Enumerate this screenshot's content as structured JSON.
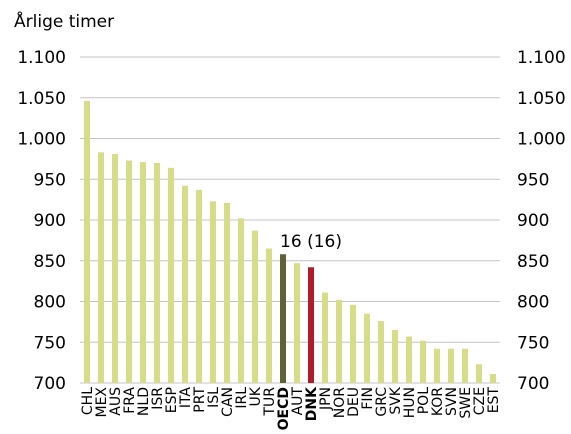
{
  "chart_data": {
    "type": "bar",
    "ylabel": "Årlige timer",
    "ylim": [
      700,
      1100
    ],
    "yticks": [
      700,
      750,
      800,
      850,
      900,
      950,
      1000,
      1050,
      1100
    ],
    "ytick_labels": [
      "700",
      "750",
      "800",
      "850",
      "900",
      "950",
      "1.000",
      "1.050",
      "1.100"
    ],
    "secondary_axis": "right",
    "grid": "horizontal",
    "categories": [
      "CHL",
      "MEX",
      "AUS",
      "FRA",
      "NLD",
      "ISR",
      "ESP",
      "ITA",
      "PRT",
      "ISL",
      "CAN",
      "IRL",
      "UK",
      "TUR",
      "OECD",
      "AUT",
      "DNK",
      "JPN",
      "NOR",
      "DEU",
      "FIN",
      "GRC",
      "SVK",
      "HUN",
      "POL",
      "KOR",
      "SVN",
      "SWE",
      "CZE",
      "EST"
    ],
    "values": [
      1046,
      983,
      981,
      973,
      971,
      970,
      964,
      942,
      937,
      923,
      921,
      902,
      887,
      865,
      858,
      847,
      842,
      811,
      802,
      796,
      785,
      776,
      765,
      757,
      752,
      742,
      742,
      742,
      723,
      711
    ],
    "bold_categories": [
      "OECD",
      "DNK"
    ],
    "highlights": {
      "OECD": "#5e6236",
      "DNK": "#b01c2c"
    },
    "default_color": "#d7dc89",
    "annotation": {
      "text": "16 (16)",
      "category": "DNK"
    }
  }
}
